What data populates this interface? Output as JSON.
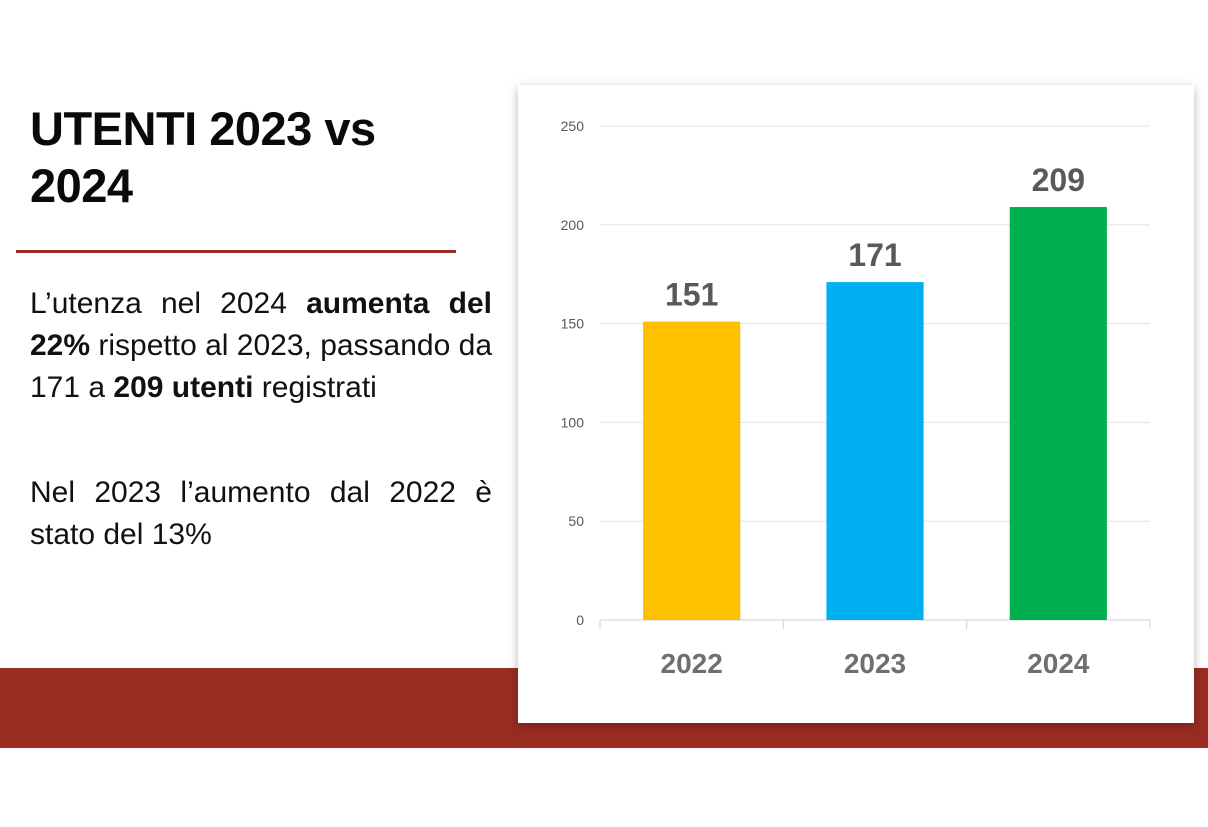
{
  "slide": {
    "title": "UTENTI 2023 vs 2024",
    "para1": {
      "t1": "L’utenza nel 2024 ",
      "b1": "aumenta del 22%",
      "t2": " rispetto al 2023, passando da 171 a ",
      "b2": "209 utenti",
      "t3": " registrati"
    },
    "para2": "Nel 2023 l’aumento dal 2022 è stato del 13%",
    "colors": {
      "accent": "#9a2d22"
    }
  },
  "chart_data": {
    "type": "bar",
    "categories": [
      "2022",
      "2023",
      "2024"
    ],
    "values": [
      151,
      171,
      209
    ],
    "colors": [
      "#ffc000",
      "#00b0f0",
      "#00b050"
    ],
    "title": "",
    "xlabel": "",
    "ylabel": "",
    "ylim": [
      0,
      250
    ],
    "yticks": [
      0,
      50,
      100,
      150,
      200,
      250
    ],
    "grid": true,
    "data_labels": true,
    "legend": "none"
  }
}
